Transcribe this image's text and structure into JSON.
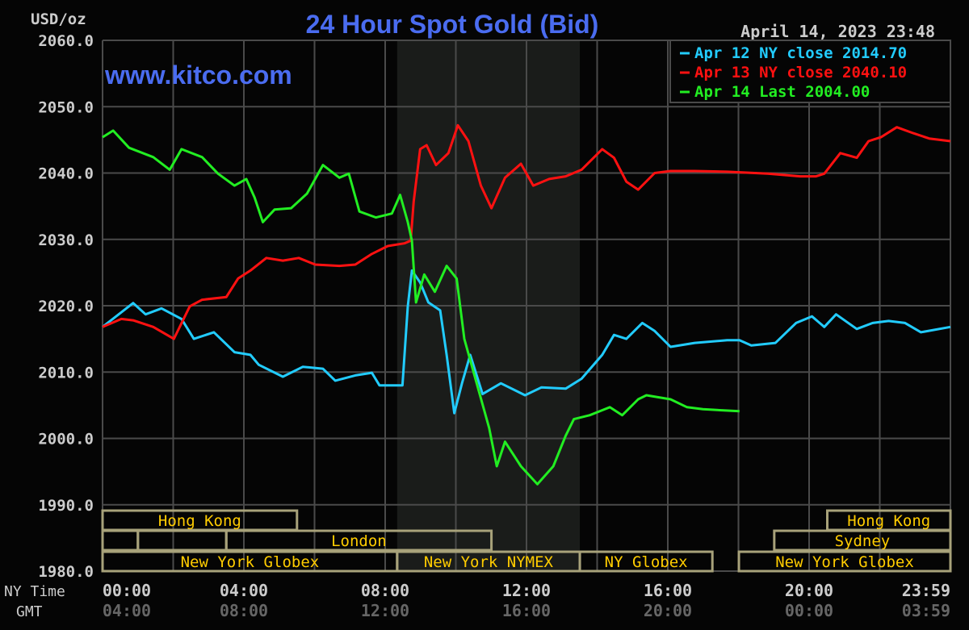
{
  "chart_data": {
    "type": "line",
    "title": "24 Hour Spot Gold (Bid)",
    "watermark": "www.kitco.com",
    "timestamp": "April 14, 2023 23:48",
    "ylabel": "USD/oz",
    "ylim": [
      1980,
      2060
    ],
    "yticks": [
      "2060.0",
      "2050.0",
      "2040.0",
      "2030.0",
      "2020.0",
      "2010.0",
      "2000.0",
      "1990.0",
      "1980.0"
    ],
    "xlim": [
      "00:00",
      "23:59"
    ],
    "x_row_labels": {
      "ny": "NY Time",
      "gmt": "GMT"
    },
    "xticks_ny": [
      "00:00",
      "04:00",
      "08:00",
      "12:00",
      "16:00",
      "20:00",
      "23:59"
    ],
    "xticks_gmt": [
      "04:00",
      "08:00",
      "12:00",
      "16:00",
      "20:00",
      "00:00",
      "03:59"
    ],
    "grid": true,
    "legend_placement": "top-right",
    "shaded_period": [
      "08:20",
      "13:30"
    ],
    "series": [
      {
        "name": "Apr 12 NY close 2014.70",
        "color": "#22ccff",
        "points": [
          [
            "00:00",
            2016.8
          ],
          [
            "00:52",
            2020.4
          ],
          [
            "01:13",
            2018.7
          ],
          [
            "01:40",
            2019.6
          ],
          [
            "02:14",
            2018.0
          ],
          [
            "02:35",
            2015.0
          ],
          [
            "03:09",
            2016.0
          ],
          [
            "03:44",
            2013.0
          ],
          [
            "04:11",
            2012.6
          ],
          [
            "04:25",
            2011.1
          ],
          [
            "05:06",
            2009.3
          ],
          [
            "05:40",
            2010.8
          ],
          [
            "06:14",
            2010.5
          ],
          [
            "06:35",
            2008.7
          ],
          [
            "07:09",
            2009.5
          ],
          [
            "07:37",
            2009.9
          ],
          [
            "07:50",
            2008.0
          ],
          [
            "08:29",
            2008.0
          ],
          [
            "08:38",
            2019.9
          ],
          [
            "08:45",
            2025.3
          ],
          [
            "08:59",
            2023.5
          ],
          [
            "09:13",
            2020.5
          ],
          [
            "09:33",
            2019.3
          ],
          [
            "09:44",
            2012.6
          ],
          [
            "09:57",
            2003.8
          ],
          [
            "10:10",
            2008.3
          ],
          [
            "10:24",
            2012.6
          ],
          [
            "10:45",
            2006.7
          ],
          [
            "11:16",
            2008.3
          ],
          [
            "11:57",
            2006.5
          ],
          [
            "12:25",
            2007.7
          ],
          [
            "13:06",
            2007.5
          ],
          [
            "13:33",
            2009.0
          ],
          [
            "14:08",
            2012.6
          ],
          [
            "14:28",
            2015.6
          ],
          [
            "14:49",
            2015.0
          ],
          [
            "15:16",
            2017.4
          ],
          [
            "15:37",
            2016.2
          ],
          [
            "16:04",
            2013.8
          ],
          [
            "16:45",
            2014.4
          ],
          [
            "17:40",
            2014.8
          ],
          [
            "18:01",
            2014.8
          ],
          [
            "18:21",
            2014.0
          ],
          [
            "19:02",
            2014.4
          ],
          [
            "19:37",
            2017.4
          ],
          [
            "20:04",
            2018.4
          ],
          [
            "20:25",
            2016.8
          ],
          [
            "20:45",
            2018.7
          ],
          [
            "21:20",
            2016.5
          ],
          [
            "21:47",
            2017.4
          ],
          [
            "22:14",
            2017.7
          ],
          [
            "22:42",
            2017.4
          ],
          [
            "23:09",
            2016.0
          ],
          [
            "23:59",
            2016.8
          ]
        ]
      },
      {
        "name": "Apr 13 NY close 2040.10",
        "color": "#ff1111",
        "points": [
          [
            "00:00",
            2016.8
          ],
          [
            "00:32",
            2018.0
          ],
          [
            "00:52",
            2017.8
          ],
          [
            "01:26",
            2016.8
          ],
          [
            "02:01",
            2015.0
          ],
          [
            "02:28",
            2019.9
          ],
          [
            "02:49",
            2020.9
          ],
          [
            "03:30",
            2021.3
          ],
          [
            "03:50",
            2024.1
          ],
          [
            "04:11",
            2025.3
          ],
          [
            "04:38",
            2027.2
          ],
          [
            "05:06",
            2026.8
          ],
          [
            "05:33",
            2027.2
          ],
          [
            "06:01",
            2026.2
          ],
          [
            "06:42",
            2026.0
          ],
          [
            "07:09",
            2026.2
          ],
          [
            "07:37",
            2027.8
          ],
          [
            "08:04",
            2029.0
          ],
          [
            "08:32",
            2029.4
          ],
          [
            "08:43",
            2029.8
          ],
          [
            "08:48",
            2035.7
          ],
          [
            "08:59",
            2043.6
          ],
          [
            "09:10",
            2044.2
          ],
          [
            "09:26",
            2041.2
          ],
          [
            "09:47",
            2043.0
          ],
          [
            "10:03",
            2047.2
          ],
          [
            "10:21",
            2044.8
          ],
          [
            "10:42",
            2038.1
          ],
          [
            "11:00",
            2034.7
          ],
          [
            "11:23",
            2039.3
          ],
          [
            "11:50",
            2041.4
          ],
          [
            "12:11",
            2038.1
          ],
          [
            "12:38",
            2039.1
          ],
          [
            "13:06",
            2039.5
          ],
          [
            "13:33",
            2040.5
          ],
          [
            "14:08",
            2043.6
          ],
          [
            "14:28",
            2042.3
          ],
          [
            "14:49",
            2038.7
          ],
          [
            "15:09",
            2037.5
          ],
          [
            "15:37",
            2040.0
          ],
          [
            "16:04",
            2040.3
          ],
          [
            "16:45",
            2040.3
          ],
          [
            "17:40",
            2040.2
          ],
          [
            "18:49",
            2039.9
          ],
          [
            "19:44",
            2039.5
          ],
          [
            "20:11",
            2039.5
          ],
          [
            "20:25",
            2039.9
          ],
          [
            "20:52",
            2043.0
          ],
          [
            "21:20",
            2042.3
          ],
          [
            "21:40",
            2044.8
          ],
          [
            "22:01",
            2045.4
          ],
          [
            "22:28",
            2046.9
          ],
          [
            "22:56",
            2046.0
          ],
          [
            "23:23",
            2045.2
          ],
          [
            "23:59",
            2044.8
          ]
        ]
      },
      {
        "name": "Apr 14 Last 2004.00",
        "color": "#22ee22",
        "points": [
          [
            "00:00",
            2045.4
          ],
          [
            "00:18",
            2046.4
          ],
          [
            "00:45",
            2043.8
          ],
          [
            "01:26",
            2042.4
          ],
          [
            "01:54",
            2040.5
          ],
          [
            "02:14",
            2043.6
          ],
          [
            "02:49",
            2042.4
          ],
          [
            "03:16",
            2039.9
          ],
          [
            "03:44",
            2038.1
          ],
          [
            "04:04",
            2039.1
          ],
          [
            "04:18",
            2036.3
          ],
          [
            "04:32",
            2032.6
          ],
          [
            "04:52",
            2034.5
          ],
          [
            "05:20",
            2034.7
          ],
          [
            "05:47",
            2036.9
          ],
          [
            "06:14",
            2041.2
          ],
          [
            "06:42",
            2039.3
          ],
          [
            "06:58",
            2039.9
          ],
          [
            "07:16",
            2034.2
          ],
          [
            "07:44",
            2033.3
          ],
          [
            "08:11",
            2033.9
          ],
          [
            "08:25",
            2036.7
          ],
          [
            "08:38",
            2032.6
          ],
          [
            "08:45",
            2029.8
          ],
          [
            "08:52",
            2020.5
          ],
          [
            "09:06",
            2024.7
          ],
          [
            "09:24",
            2022.1
          ],
          [
            "09:44",
            2026.0
          ],
          [
            "10:01",
            2024.1
          ],
          [
            "10:14",
            2015.0
          ],
          [
            "10:35",
            2008.3
          ],
          [
            "10:56",
            2001.6
          ],
          [
            "11:09",
            1995.8
          ],
          [
            "11:23",
            1999.5
          ],
          [
            "11:50",
            1995.8
          ],
          [
            "12:18",
            1993.1
          ],
          [
            "12:45",
            1995.8
          ],
          [
            "13:06",
            2000.4
          ],
          [
            "13:20",
            2002.9
          ],
          [
            "13:47",
            2003.5
          ],
          [
            "14:21",
            2004.7
          ],
          [
            "14:42",
            2003.5
          ],
          [
            "15:09",
            2005.9
          ],
          [
            "15:23",
            2006.5
          ],
          [
            "16:04",
            2005.9
          ],
          [
            "16:32",
            2004.7
          ],
          [
            "16:59",
            2004.4
          ],
          [
            "18:01",
            2004.1
          ]
        ]
      }
    ],
    "sessions": [
      {
        "label": "Hong Kong",
        "row": 0,
        "start": "00:00",
        "end": "05:30"
      },
      {
        "label": "Hong Kong",
        "row": 0,
        "start": "20:30",
        "end": "23:59"
      },
      {
        "label": "",
        "row": 1,
        "start": "00:00",
        "end": "01:00"
      },
      {
        "label": "",
        "row": 1,
        "start": "01:00",
        "end": "03:30"
      },
      {
        "label": "London",
        "row": 1,
        "start": "03:30",
        "end": "11:00"
      },
      {
        "label": "Sydney",
        "row": 1,
        "start": "19:00",
        "end": "23:59"
      },
      {
        "label": "New York Globex",
        "row": 2,
        "start": "00:00",
        "end": "08:20"
      },
      {
        "label": "New York NYMEX",
        "row": 2,
        "start": "08:20",
        "end": "13:30"
      },
      {
        "label": "NY Globex",
        "row": 2,
        "start": "13:30",
        "end": "17:15"
      },
      {
        "label": "New York Globex",
        "row": 2,
        "start": "18:00",
        "end": "23:59"
      }
    ]
  }
}
